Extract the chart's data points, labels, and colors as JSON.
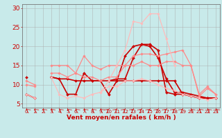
{
  "background_color": "#c8eaea",
  "grid_color": "#aaaaaa",
  "x_values": [
    0,
    1,
    2,
    3,
    4,
    5,
    6,
    7,
    8,
    9,
    10,
    11,
    12,
    13,
    14,
    15,
    16,
    17,
    18,
    19,
    20,
    21,
    22,
    23
  ],
  "series": [
    {
      "y": [
        7.5,
        6.5,
        null,
        12,
        11.5,
        7.5,
        7.5,
        13,
        11,
        11,
        7.5,
        11,
        17.5,
        20,
        20.5,
        20.5,
        19,
        8,
        7.5,
        7.5,
        7,
        6.5,
        6.5,
        6.5
      ],
      "color": "#cc0000",
      "lw": 1.2,
      "ms": 2.0
    },
    {
      "y": [
        12,
        null,
        null,
        12,
        11.5,
        11.5,
        11,
        11,
        11,
        11,
        11,
        11,
        11,
        11,
        11,
        11,
        11,
        11,
        11,
        7.5,
        7,
        6.5,
        6.5,
        6.5
      ],
      "color": "#cc0000",
      "lw": 1.2,
      "ms": 2.0
    },
    {
      "y": [
        null,
        null,
        null,
        null,
        null,
        null,
        null,
        null,
        null,
        null,
        11,
        11.5,
        11.5,
        17,
        20.5,
        20,
        17,
        11.5,
        8,
        8,
        7.5,
        7,
        6.5,
        6.5
      ],
      "color": "#cc0000",
      "lw": 1.2,
      "ms": 2.0
    },
    {
      "y": [
        10,
        9.5,
        null,
        13,
        13,
        12,
        13,
        12,
        12,
        11,
        12,
        12,
        15,
        17.5,
        18,
        18,
        17.5,
        18,
        18.5,
        19,
        15,
        7,
        9,
        7.5
      ],
      "color": "#ff8888",
      "lw": 0.9,
      "ms": 1.8
    },
    {
      "y": [
        11,
        10,
        null,
        15,
        15,
        15,
        13,
        17.5,
        15,
        14,
        15,
        15,
        15,
        15,
        16,
        15,
        15,
        16,
        16,
        15,
        15,
        7.5,
        9.5,
        7.5
      ],
      "color": "#ff8888",
      "lw": 0.9,
      "ms": 1.8
    },
    {
      "y": [
        7.5,
        6.5,
        null,
        12,
        7.5,
        6.5,
        7,
        6.5,
        7.5,
        8,
        9.5,
        9.5,
        11,
        11,
        11.5,
        11,
        10,
        9,
        8.5,
        7.5,
        7,
        6.5,
        6,
        6.5
      ],
      "color": "#ffbbbb",
      "lw": 0.9,
      "ms": 1.8
    },
    {
      "y": [
        null,
        null,
        null,
        null,
        null,
        6.5,
        null,
        null,
        null,
        8,
        11,
        15,
        19,
        26.5,
        26,
        28.5,
        28.5,
        22,
        15,
        null,
        null,
        null,
        null,
        null
      ],
      "color": "#ffbbbb",
      "lw": 0.9,
      "ms": 1.8
    }
  ],
  "ylim": [
    4,
    31
  ],
  "yticks": [
    5,
    10,
    15,
    20,
    25,
    30
  ],
  "xticks": [
    0,
    1,
    2,
    3,
    4,
    5,
    6,
    7,
    8,
    9,
    10,
    11,
    12,
    13,
    14,
    15,
    16,
    17,
    18,
    19,
    20,
    21,
    22,
    23
  ],
  "xlabel": "Vent moyen/en rafales ( km/h )",
  "xlabel_color": "#cc0000",
  "tick_color": "#cc0000",
  "xlabel_fontsize": 6.5,
  "ytick_fontsize": 6.5,
  "xtick_fontsize": 5.0,
  "arrow_dirs": [
    -1,
    -1,
    -1,
    -1,
    -1,
    -1,
    -1,
    -1,
    -1,
    -1,
    1,
    1,
    1,
    1,
    1,
    1,
    1,
    1,
    1,
    1,
    -1,
    -1,
    -1,
    -1
  ]
}
